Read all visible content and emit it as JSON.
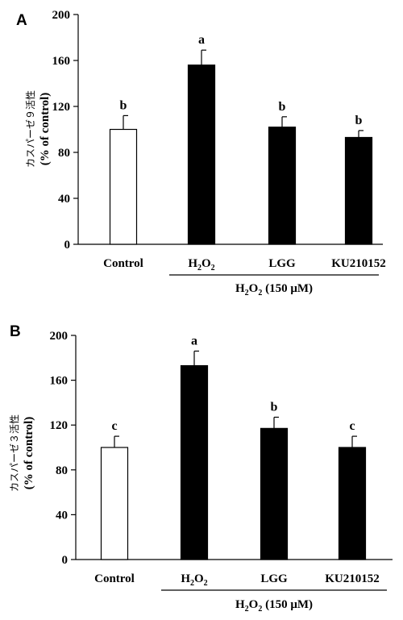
{
  "chart_data": [
    {
      "type": "bar",
      "panel_label": "A",
      "categories": [
        "Control",
        "H2O2",
        "LGG",
        "KU210152"
      ],
      "values": [
        100,
        156,
        102,
        93
      ],
      "errors": [
        12,
        13,
        9,
        6
      ],
      "significance": [
        "b",
        "a",
        "b",
        "b"
      ],
      "bar_colors": [
        "#ffffff",
        "#000000",
        "#000000",
        "#000000"
      ],
      "ylabel_jp": "カスパーゼ９活性",
      "ylabel": "(% of control)",
      "ylim": [
        0,
        200
      ],
      "yticks": [
        0,
        40,
        80,
        120,
        160,
        200
      ],
      "group_label": "H2O2 (150 μM)"
    },
    {
      "type": "bar",
      "panel_label": "B",
      "categories": [
        "Control",
        "H2O2",
        "LGG",
        "KU210152"
      ],
      "values": [
        100,
        173,
        117,
        100
      ],
      "errors": [
        10,
        13,
        10,
        10
      ],
      "significance": [
        "c",
        "a",
        "b",
        "c"
      ],
      "bar_colors": [
        "#ffffff",
        "#000000",
        "#000000",
        "#000000"
      ],
      "ylabel_jp": "カスパーゼ３活性",
      "ylabel": "(% of control)",
      "ylim": [
        0,
        200
      ],
      "yticks": [
        0,
        40,
        80,
        120,
        160,
        200
      ],
      "group_label": "H2O2 (150 μM)"
    }
  ]
}
